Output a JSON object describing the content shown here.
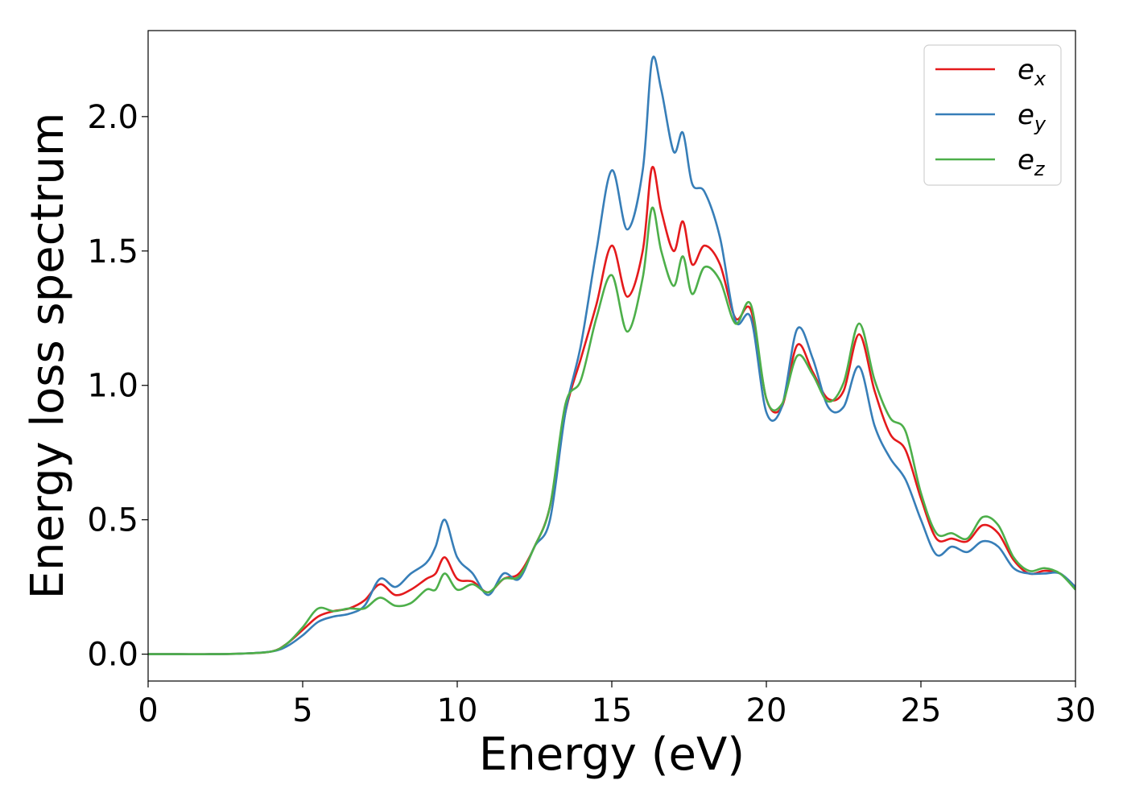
{
  "chart_data": {
    "type": "line",
    "title": "",
    "xlabel": "Energy (eV)",
    "ylabel": "Energy loss spectrum",
    "xlim": [
      0,
      30
    ],
    "ylim": [
      -0.1,
      2.32
    ],
    "x_ticks": [
      0,
      5,
      10,
      15,
      20,
      25,
      30
    ],
    "x_tick_labels": [
      "0",
      "5",
      "10",
      "15",
      "20",
      "25",
      "30"
    ],
    "y_ticks": [
      0.0,
      0.5,
      1.0,
      1.5,
      2.0
    ],
    "y_tick_labels": [
      "0.0",
      "0.5",
      "1.0",
      "1.5",
      "2.0"
    ],
    "grid": false,
    "legend_position": "top-right",
    "x": [
      0,
      1,
      2,
      3,
      4,
      4.5,
      5,
      5.5,
      6,
      6.5,
      7,
      7.5,
      8,
      8.5,
      9,
      9.3,
      9.6,
      10,
      10.5,
      11,
      11.5,
      12,
      12.5,
      13,
      13.5,
      14,
      14.5,
      15,
      15.5,
      16,
      16.3,
      16.6,
      17,
      17.3,
      17.6,
      18,
      18.5,
      19,
      19.5,
      20,
      20.5,
      21,
      21.5,
      22,
      22.5,
      23,
      23.5,
      24,
      24.5,
      25,
      25.5,
      26,
      26.5,
      27,
      27.5,
      28,
      28.5,
      29,
      29.5,
      30
    ],
    "series": [
      {
        "name": "e",
        "subscript": "x",
        "color": "#e41a1c",
        "values": [
          0,
          0,
          0,
          0.002,
          0.01,
          0.04,
          0.09,
          0.14,
          0.16,
          0.17,
          0.2,
          0.26,
          0.22,
          0.24,
          0.28,
          0.3,
          0.36,
          0.28,
          0.27,
          0.23,
          0.28,
          0.3,
          0.4,
          0.55,
          0.9,
          1.1,
          1.3,
          1.52,
          1.33,
          1.5,
          1.81,
          1.65,
          1.5,
          1.61,
          1.45,
          1.52,
          1.45,
          1.25,
          1.28,
          0.95,
          0.92,
          1.15,
          1.05,
          0.95,
          0.98,
          1.19,
          0.98,
          0.82,
          0.76,
          0.58,
          0.43,
          0.43,
          0.42,
          0.48,
          0.45,
          0.35,
          0.3,
          0.31,
          0.3,
          0.25
        ]
      },
      {
        "name": "e",
        "subscript": "y",
        "color": "#377eb8",
        "values": [
          0,
          0,
          0,
          0.002,
          0.01,
          0.03,
          0.07,
          0.12,
          0.14,
          0.15,
          0.18,
          0.28,
          0.25,
          0.3,
          0.34,
          0.4,
          0.5,
          0.36,
          0.3,
          0.22,
          0.3,
          0.28,
          0.4,
          0.5,
          0.9,
          1.15,
          1.5,
          1.8,
          1.58,
          1.8,
          2.21,
          2.1,
          1.87,
          1.94,
          1.75,
          1.72,
          1.55,
          1.24,
          1.25,
          0.9,
          0.92,
          1.21,
          1.1,
          0.92,
          0.92,
          1.07,
          0.85,
          0.73,
          0.65,
          0.5,
          0.37,
          0.4,
          0.38,
          0.42,
          0.4,
          0.32,
          0.3,
          0.3,
          0.3,
          0.25
        ]
      },
      {
        "name": "e",
        "subscript": "z",
        "color": "#4daf4a",
        "values": [
          0,
          0,
          0,
          0.002,
          0.01,
          0.04,
          0.1,
          0.17,
          0.16,
          0.17,
          0.17,
          0.21,
          0.18,
          0.19,
          0.24,
          0.24,
          0.3,
          0.24,
          0.26,
          0.23,
          0.28,
          0.29,
          0.4,
          0.55,
          0.93,
          1.02,
          1.25,
          1.41,
          1.2,
          1.4,
          1.66,
          1.5,
          1.37,
          1.48,
          1.34,
          1.44,
          1.39,
          1.23,
          1.3,
          0.95,
          0.93,
          1.11,
          1.04,
          0.94,
          1.01,
          1.23,
          1.02,
          0.88,
          0.83,
          0.6,
          0.45,
          0.45,
          0.43,
          0.51,
          0.48,
          0.36,
          0.31,
          0.32,
          0.3,
          0.24
        ]
      }
    ]
  }
}
